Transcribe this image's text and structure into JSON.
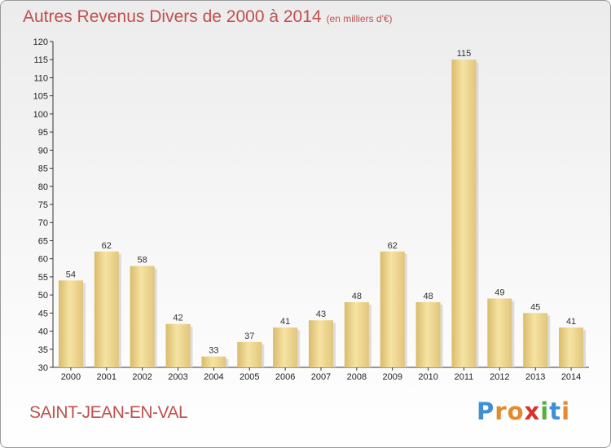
{
  "title": "Autres Revenus Divers de 2000 à 2014",
  "unit": "(en milliers d'€)",
  "town": "SAINT-JEAN-EN-VAL",
  "logo": {
    "letters": [
      "P",
      "r",
      "o",
      "x",
      "i",
      "t",
      "i"
    ],
    "colors": [
      "#3d8fd6",
      "#e38a2a",
      "#e38a2a",
      "#d6342b",
      "#55b040",
      "#3d8fd6",
      "#e38a2a"
    ]
  },
  "chart_data": {
    "type": "bar",
    "title": "Autres Revenus Divers de 2000 à 2014",
    "unit": "(en milliers d'€)",
    "categories": [
      "2000",
      "2001",
      "2002",
      "2003",
      "2004",
      "2005",
      "2006",
      "2007",
      "2008",
      "2009",
      "2010",
      "2011",
      "2012",
      "2013",
      "2014"
    ],
    "values": [
      54,
      62,
      58,
      42,
      33,
      37,
      41,
      43,
      48,
      62,
      48,
      115,
      49,
      45,
      41
    ],
    "ylim": [
      30,
      120
    ],
    "yticks": [
      30,
      35,
      40,
      45,
      50,
      55,
      60,
      65,
      70,
      75,
      80,
      85,
      90,
      95,
      100,
      105,
      110,
      115,
      120
    ],
    "grid": false,
    "xlabel": "",
    "ylabel": "",
    "bar_color": "#e9cf85",
    "text_color": "#c0504d"
  }
}
